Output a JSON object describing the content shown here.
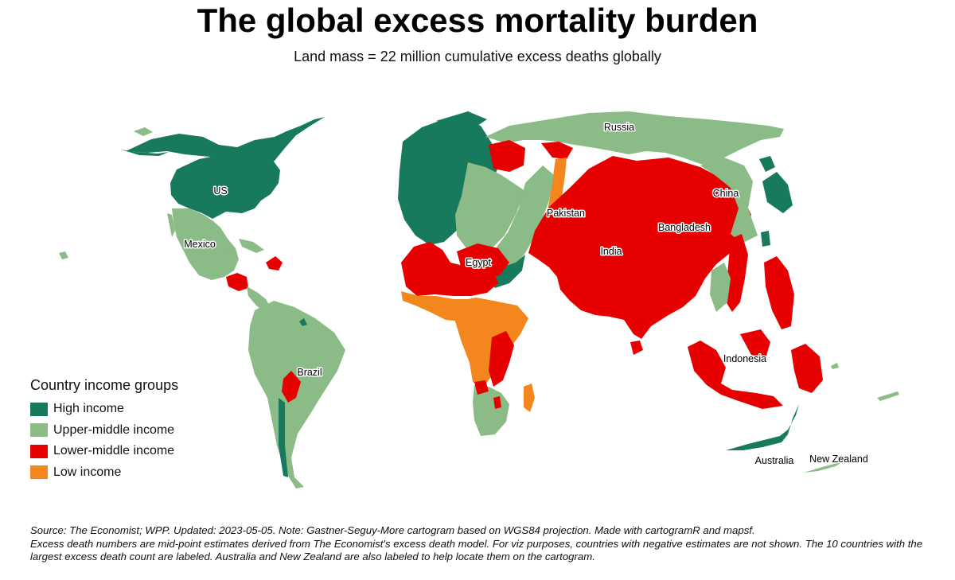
{
  "title": "The global excess mortality burden",
  "subtitle": "Land mass = 22 million cumulative excess deaths globally",
  "colors": {
    "high_income": "#177a5c",
    "upper_middle_income": "#8bbb86",
    "lower_middle_income": "#e60000",
    "low_income": "#f3861c",
    "border": "#5e8f62"
  },
  "legend": {
    "title": "Country income groups",
    "items": [
      {
        "label": "High income",
        "color": "#177a5c"
      },
      {
        "label": "Upper-middle income",
        "color": "#8bbb86"
      },
      {
        "label": "Lower-middle income",
        "color": "#e60000"
      },
      {
        "label": "Low income",
        "color": "#f3861c"
      }
    ]
  },
  "map": {
    "country_labels": {
      "us": "US",
      "mexico": "Mexico",
      "brazil": "Brazil",
      "russia": "Russia",
      "pakistan": "Pakistan",
      "china": "China",
      "bangladesh": "Bangladesh",
      "egypt": "Egypt",
      "india": "India",
      "indonesia": "Indonesia",
      "australia": "Australia",
      "new_zealand": "New Zealand"
    }
  },
  "footnote": {
    "line1": "Source: The Economist; WPP. Updated: 2023-05-05. Note: Gastner-Seguy-More cartogram based on WGS84 projection. Made with cartogramR and mapsf.",
    "line2": "Excess death numbers are mid-point estimates derived from The Economist's excess death model. For viz purposes, countries with negative estimates are not shown. The 10 countries with the largest excess death count are labeled. Australia and New Zealand are also labeled to help locate them on the cartogram."
  }
}
